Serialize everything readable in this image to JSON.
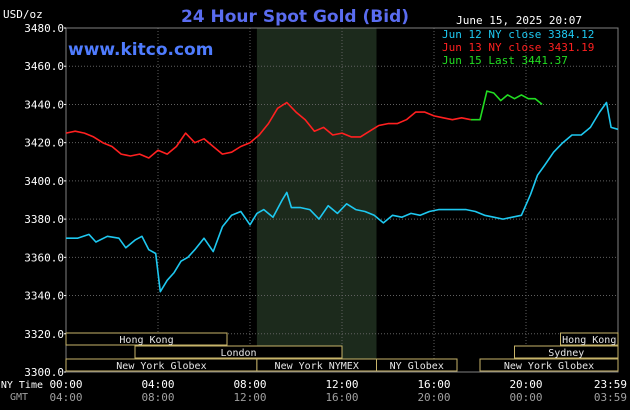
{
  "header": {
    "title": "24 Hour Spot Gold (Bid)",
    "unit": "USD/oz",
    "timestamp": "June 15, 2025 20:07",
    "website": "www.kitco.com"
  },
  "colors": {
    "background": "#000000",
    "grid": "#606060",
    "title": "#5a6cf0",
    "website": "#4f7cff",
    "night_shade": "#1c2a1c",
    "session_fill": "#000000",
    "session_border": "#c7b46a",
    "session_text": "#e6e6e6",
    "axis_text": "#ffffff",
    "gmt_text": "#a0a0a0"
  },
  "chart_data": {
    "type": "line",
    "title": "24 Hour Spot Gold (Bid)",
    "ylabel": "USD/oz",
    "x_unit": "hours (NY time)",
    "xlim": [
      0,
      24
    ],
    "ylim": [
      3300,
      3480
    ],
    "yticks": [
      "3480.0",
      "3460.0",
      "3440.0",
      "3420.0",
      "3400.0",
      "3380.0",
      "3360.0",
      "3340.0",
      "3320.0",
      "3300.0"
    ],
    "ytick_values": [
      3480,
      3460,
      3440,
      3420,
      3400,
      3380,
      3360,
      3340,
      3320,
      3300
    ],
    "xtick_hours": [
      0,
      4,
      8,
      12,
      16,
      20,
      23.983
    ],
    "xticks_ny": [
      "00:00",
      "04:00",
      "08:00",
      "12:00",
      "16:00",
      "20:00",
      "23:59"
    ],
    "xticks_gmt": [
      "04:00",
      "08:00",
      "12:00",
      "16:00",
      "20:00",
      "00:00",
      "03:59"
    ],
    "x_row_label_ny": "NY Time",
    "x_row_label_gmt": "GMT",
    "shaded_hours": [
      8.3,
      13.5
    ],
    "grid": true,
    "legend_position": "top-right",
    "series": [
      {
        "name": "Jun 12 NY close 3384.12",
        "color": "#1ec8f0",
        "x": [
          0,
          0.5,
          1,
          1.3,
          1.8,
          2.3,
          2.6,
          3,
          3.3,
          3.6,
          3.9,
          4.1,
          4.4,
          4.7,
          5,
          5.3,
          5.6,
          6,
          6.4,
          6.8,
          7.2,
          7.6,
          8,
          8.3,
          8.6,
          9,
          9.4,
          9.6,
          9.8,
          10.2,
          10.6,
          11,
          11.4,
          11.8,
          12.2,
          12.6,
          13,
          13.4,
          13.8,
          14.2,
          14.6,
          15,
          15.4,
          15.8,
          16.2,
          16.6,
          17,
          17.4,
          17.8,
          18.2,
          18.6,
          19,
          19.4,
          19.8,
          20.2,
          20.5,
          20.8,
          21.2,
          21.6,
          22,
          22.4,
          22.8,
          23.2,
          23.5,
          23.7,
          24
        ],
        "values": [
          3370,
          3370,
          3372,
          3368,
          3371,
          3370,
          3365,
          3369,
          3371,
          3364,
          3362,
          3342,
          3348,
          3352,
          3358,
          3360,
          3364,
          3370,
          3363,
          3376,
          3382,
          3384,
          3377,
          3383,
          3385,
          3381,
          3390,
          3394,
          3386,
          3386,
          3385,
          3380,
          3387,
          3383,
          3388,
          3385,
          3384,
          3382,
          3378,
          3382,
          3381,
          3383,
          3382,
          3384,
          3385,
          3385,
          3385,
          3385,
          3384,
          3382,
          3381,
          3380,
          3381,
          3382,
          3393,
          3403,
          3408,
          3415,
          3420,
          3424,
          3424,
          3428,
          3436,
          3441,
          3428,
          3427
        ]
      },
      {
        "name": "Jun 13 NY close 3431.19",
        "color": "#ff2020",
        "x": [
          0,
          0.4,
          0.8,
          1.2,
          1.6,
          2,
          2.4,
          2.8,
          3.2,
          3.6,
          4,
          4.4,
          4.8,
          5.2,
          5.6,
          6,
          6.4,
          6.8,
          7.2,
          7.6,
          8,
          8.4,
          8.8,
          9.2,
          9.6,
          10,
          10.4,
          10.8,
          11.2,
          11.6,
          12,
          12.4,
          12.8,
          13.2,
          13.6,
          14,
          14.4,
          14.8,
          15.2,
          15.6,
          16,
          16.4,
          16.8,
          17.2,
          17.6
        ],
        "values": [
          3425,
          3426,
          3425,
          3423,
          3420,
          3418,
          3414,
          3413,
          3414,
          3412,
          3416,
          3414,
          3418,
          3425,
          3420,
          3422,
          3418,
          3414,
          3415,
          3418,
          3420,
          3424,
          3430,
          3438,
          3441,
          3436,
          3432,
          3426,
          3428,
          3424,
          3425,
          3423,
          3423,
          3426,
          3429,
          3430,
          3430,
          3432,
          3436,
          3436,
          3434,
          3433,
          3432,
          3433,
          3432
        ]
      },
      {
        "name": "Jun 15 Last 3441.37",
        "color": "#22dd22",
        "x": [
          17.6,
          18,
          18.3,
          18.6,
          18.9,
          19.2,
          19.5,
          19.8,
          20.1,
          20.4,
          20.7
        ],
        "values": [
          3432,
          3432,
          3447,
          3446,
          3442,
          3445,
          3443,
          3445,
          3443,
          3443,
          3440
        ]
      }
    ]
  },
  "sessions": [
    {
      "label": "Hong Kong",
      "start": -1,
      "end": 7.0,
      "row": 0
    },
    {
      "label": "London",
      "start": 3.0,
      "end": 12.0,
      "row": 1
    },
    {
      "label": "New York Globex",
      "start": -1,
      "end": 8.3,
      "row": 2
    },
    {
      "label": "New York NYMEX",
      "start": 8.3,
      "end": 13.5,
      "row": 2
    },
    {
      "label": "NY Globex",
      "start": 13.5,
      "end": 17.0,
      "row": 2
    },
    {
      "label": "Hong Kong",
      "start": 21.5,
      "end": 25,
      "row": 0
    },
    {
      "label": "Sydney",
      "start": 19.5,
      "end": 25,
      "row": 1
    },
    {
      "label": "New York Globex",
      "start": 18.0,
      "end": 25,
      "row": 2
    }
  ]
}
